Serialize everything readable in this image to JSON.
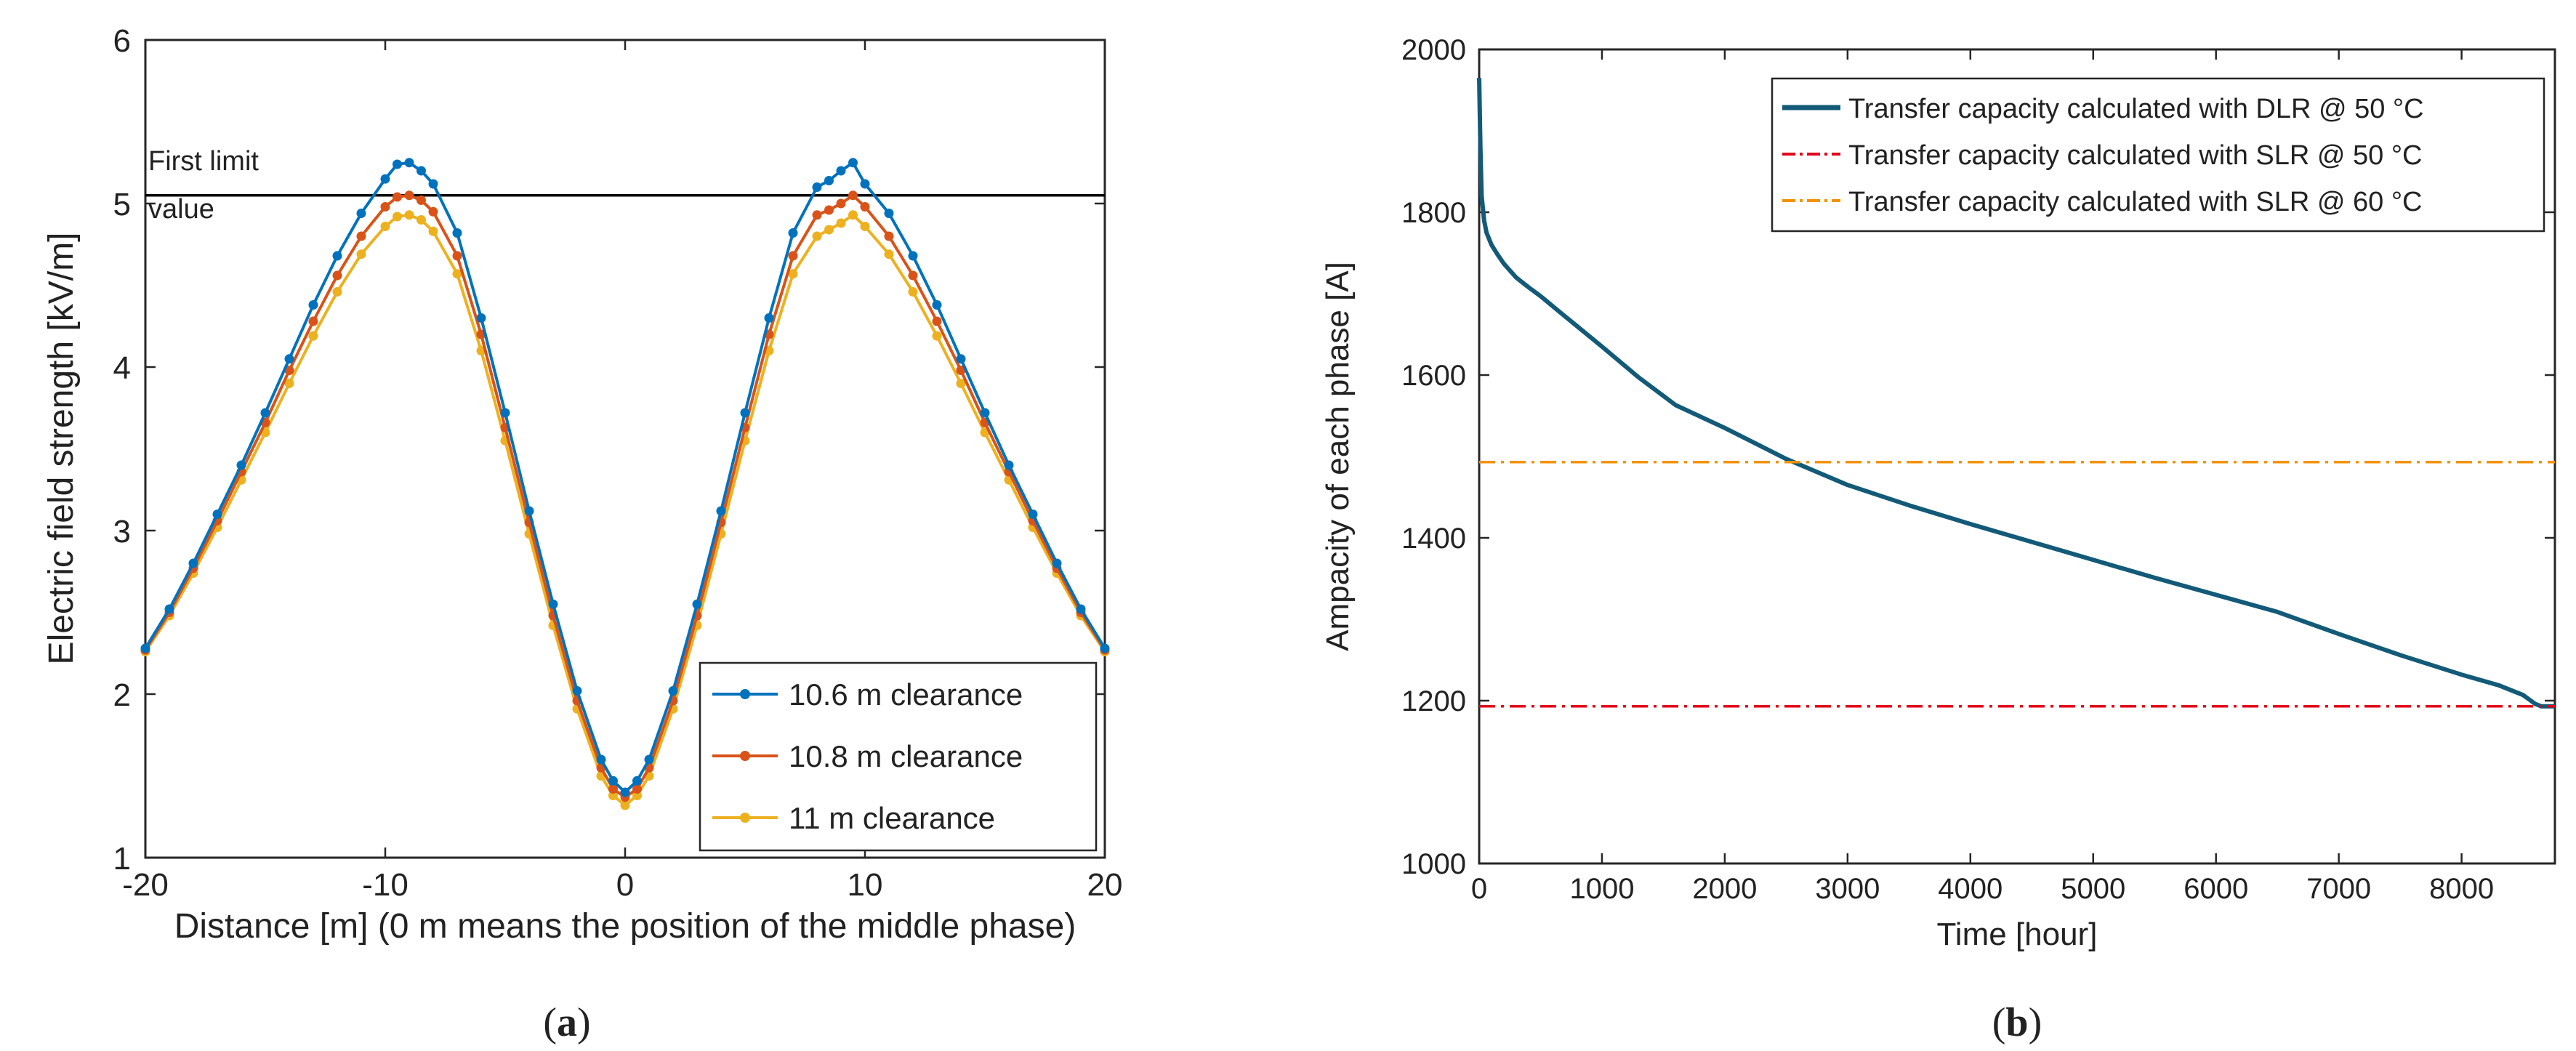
{
  "chart_data": [
    {
      "type": "line",
      "panel_label": "a",
      "title": "",
      "xlabel": "Distance [m] (0 m means the position of the middle phase)",
      "ylabel": "Electric field strength [kV/m]",
      "xlim": [
        -20,
        20
      ],
      "ylim": [
        1,
        6
      ],
      "xticks": [
        -20,
        -10,
        0,
        10,
        20
      ],
      "yticks": [
        1,
        2,
        3,
        4,
        5,
        6
      ],
      "grid": false,
      "legend_position": "bottom-right",
      "series": [
        {
          "name": "10.6 m clearance",
          "color": "#0072BD",
          "marker": "circle",
          "x": [
            -20,
            -19,
            -18,
            -17,
            -16,
            -15,
            -14,
            -13,
            -12,
            -11,
            -10,
            -9.5,
            -9,
            -8.5,
            -8,
            -7,
            -6,
            -5,
            -4,
            -3,
            -2,
            -1,
            -0.5,
            0,
            0.5,
            1,
            2,
            3,
            4,
            5,
            6,
            7,
            8,
            8.5,
            9,
            9.5,
            10,
            11,
            12,
            13,
            14,
            15,
            16,
            17,
            18,
            19,
            20
          ],
          "y": [
            2.28,
            2.52,
            2.8,
            3.1,
            3.4,
            3.72,
            4.05,
            4.38,
            4.68,
            4.94,
            5.15,
            5.24,
            5.25,
            5.2,
            5.12,
            4.82,
            4.3,
            3.72,
            3.12,
            2.55,
            2.02,
            1.6,
            1.47,
            1.4,
            1.47,
            1.6,
            2.02,
            2.55,
            3.12,
            3.72,
            4.3,
            4.82,
            5.1,
            5.14,
            5.2,
            5.25,
            5.12,
            4.94,
            4.68,
            4.38,
            4.05,
            3.72,
            3.4,
            3.1,
            2.8,
            2.52,
            2.28
          ]
        },
        {
          "name": "10.8 m clearance",
          "color": "#D95319",
          "marker": "circle",
          "x": [
            -20,
            -19,
            -18,
            -17,
            -16,
            -15,
            -14,
            -13,
            -12,
            -11,
            -10,
            -9.5,
            -9,
            -8.5,
            -8,
            -7,
            -6,
            -5,
            -4,
            -3,
            -2,
            -1,
            -0.5,
            0,
            0.5,
            1,
            2,
            3,
            4,
            5,
            6,
            7,
            8,
            8.5,
            9,
            9.5,
            10,
            11,
            12,
            13,
            14,
            15,
            16,
            17,
            18,
            19,
            20
          ],
          "y": [
            2.27,
            2.5,
            2.77,
            3.06,
            3.36,
            3.66,
            3.98,
            4.28,
            4.56,
            4.8,
            4.98,
            5.04,
            5.05,
            5.02,
            4.95,
            4.68,
            4.2,
            3.63,
            3.05,
            2.48,
            1.96,
            1.55,
            1.42,
            1.37,
            1.42,
            1.55,
            1.96,
            2.48,
            3.05,
            3.63,
            4.2,
            4.68,
            4.93,
            4.96,
            5.0,
            5.05,
            4.98,
            4.8,
            4.56,
            4.28,
            3.98,
            3.66,
            3.36,
            3.06,
            2.77,
            2.5,
            2.27
          ]
        },
        {
          "name": "11 m clearance",
          "color": "#EDB120",
          "marker": "circle",
          "x": [
            -20,
            -19,
            -18,
            -17,
            -16,
            -15,
            -14,
            -13,
            -12,
            -11,
            -10,
            -9.5,
            -9,
            -8.5,
            -8,
            -7,
            -6,
            -5,
            -4,
            -3,
            -2,
            -1,
            -0.5,
            0,
            0.5,
            1,
            2,
            3,
            4,
            5,
            6,
            7,
            8,
            8.5,
            9,
            9.5,
            10,
            11,
            12,
            13,
            14,
            15,
            16,
            17,
            18,
            19,
            20
          ],
          "y": [
            2.26,
            2.48,
            2.74,
            3.02,
            3.31,
            3.6,
            3.9,
            4.19,
            4.46,
            4.69,
            4.86,
            4.92,
            4.93,
            4.9,
            4.83,
            4.57,
            4.1,
            3.55,
            2.98,
            2.42,
            1.91,
            1.5,
            1.38,
            1.32,
            1.38,
            1.5,
            1.91,
            2.42,
            2.98,
            3.55,
            4.1,
            4.57,
            4.8,
            4.84,
            4.88,
            4.93,
            4.86,
            4.69,
            4.46,
            4.19,
            3.9,
            3.6,
            3.31,
            3.02,
            2.74,
            2.48,
            2.26
          ]
        }
      ],
      "reference_line": {
        "value": 5.05,
        "color": "#000000",
        "label_line1": "First limit",
        "label_line2": "value"
      }
    },
    {
      "type": "line",
      "panel_label": "b",
      "title": "",
      "xlabel": "Time [hour]",
      "ylabel": "Ampacity of each phase [A]",
      "xlim": [
        0,
        8760
      ],
      "ylim": [
        1000,
        2000
      ],
      "xticks": [
        0,
        1000,
        2000,
        3000,
        4000,
        5000,
        6000,
        7000,
        8000
      ],
      "yticks": [
        1000,
        1200,
        1400,
        1600,
        1800,
        2000
      ],
      "grid": false,
      "legend_position": "top-right",
      "series": [
        {
          "name": "Transfer capacity calculated with DLR @ 50 °C",
          "color": "#125A78",
          "style": "solid",
          "x": [
            0,
            10,
            20,
            40,
            60,
            100,
            150,
            200,
            300,
            400,
            500,
            700,
            1000,
            1300,
            1600,
            2000,
            2500,
            3000,
            3500,
            4000,
            4500,
            5000,
            5500,
            6000,
            6500,
            7000,
            7500,
            8000,
            8300,
            8500,
            8600,
            8650,
            8700,
            8760
          ],
          "y": [
            1965,
            1880,
            1820,
            1790,
            1775,
            1760,
            1748,
            1737,
            1720,
            1708,
            1697,
            1672,
            1635,
            1597,
            1563,
            1535,
            1497,
            1465,
            1440,
            1417,
            1395,
            1373,
            1351,
            1330,
            1309,
            1282,
            1256,
            1232,
            1219,
            1207,
            1196,
            1193,
            1193,
            1193
          ]
        },
        {
          "name": "Transfer capacity calculated with SLR @ 50 °C",
          "color": "#E2001A",
          "style": "dash-dot",
          "x": [
            0,
            8760
          ],
          "y": [
            1193,
            1193
          ]
        },
        {
          "name": "Transfer capacity calculated with SLR @ 60 °C",
          "color": "#F39200",
          "style": "dash-dot",
          "x": [
            0,
            8760
          ],
          "y": [
            1493,
            1493
          ]
        }
      ]
    }
  ],
  "captions": {
    "a_open": "(",
    "a_letter": "a",
    "a_close": ")",
    "b_open": "(",
    "b_letter": "b",
    "b_close": ")"
  }
}
